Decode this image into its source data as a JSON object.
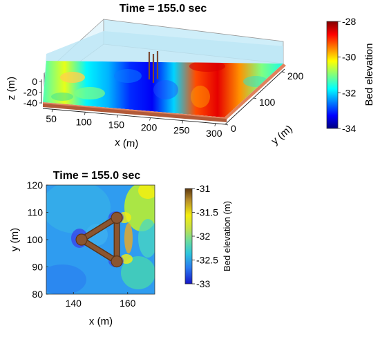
{
  "chart_data": [
    {
      "type": "heatmap",
      "view": "3d-surface",
      "title": "Time = 155.0 sec",
      "xlabel": "x (m)",
      "ylabel": "y (m)",
      "zlabel": "z (m)",
      "x_ticks": [
        "50",
        "100",
        "150",
        "200",
        "250",
        "300"
      ],
      "y_ticks": [
        "0",
        "100",
        "200"
      ],
      "z_ticks": [
        "0",
        "-20",
        "-40"
      ],
      "xlim": [
        35,
        315
      ],
      "ylim": [
        0,
        210
      ],
      "zlim": [
        -40,
        5
      ],
      "colorbar": {
        "label": "Bed elevation",
        "ticks": [
          "-28",
          "-30",
          "-32",
          "-34"
        ],
        "range": [
          -34,
          -28
        ],
        "colormap": "jet",
        "position": "right"
      },
      "bed_pattern_columns": [
        -31.3,
        -30.4,
        -31.8,
        -32.2,
        -33.0,
        -33.3,
        -32.0,
        -29.2,
        -28.6,
        -29.6,
        -31.0,
        -31.6
      ],
      "colors": {
        "water": "#bde6f6",
        "base_top": "#e0825e",
        "base_side": "#b25a38",
        "piles": "#7a4a32"
      }
    },
    {
      "type": "heatmap",
      "view": "2d-plan",
      "title": "Time = 155.0 sec",
      "xlabel": "x (m)",
      "ylabel": "y (m)",
      "x_ticks": [
        "140",
        "160"
      ],
      "y_ticks": [
        "80",
        "90",
        "100",
        "110",
        "120"
      ],
      "xlim": [
        130,
        170
      ],
      "ylim": [
        80,
        120
      ],
      "background_value": -32.3,
      "colorbar": {
        "label": "Bed elevation (m)",
        "ticks": [
          "-31",
          "-31.5",
          "-32",
          "-32.5",
          "-33"
        ],
        "range": [
          -33,
          -31
        ],
        "colormap": "parula-brown",
        "position": "right"
      },
      "piles": [
        {
          "x": 143,
          "y": 100
        },
        {
          "x": 156,
          "y": 108
        },
        {
          "x": 156,
          "y": 92
        }
      ],
      "colors": {
        "structure": "#8b5530",
        "structure_edge": "#5a3418"
      }
    }
  ]
}
